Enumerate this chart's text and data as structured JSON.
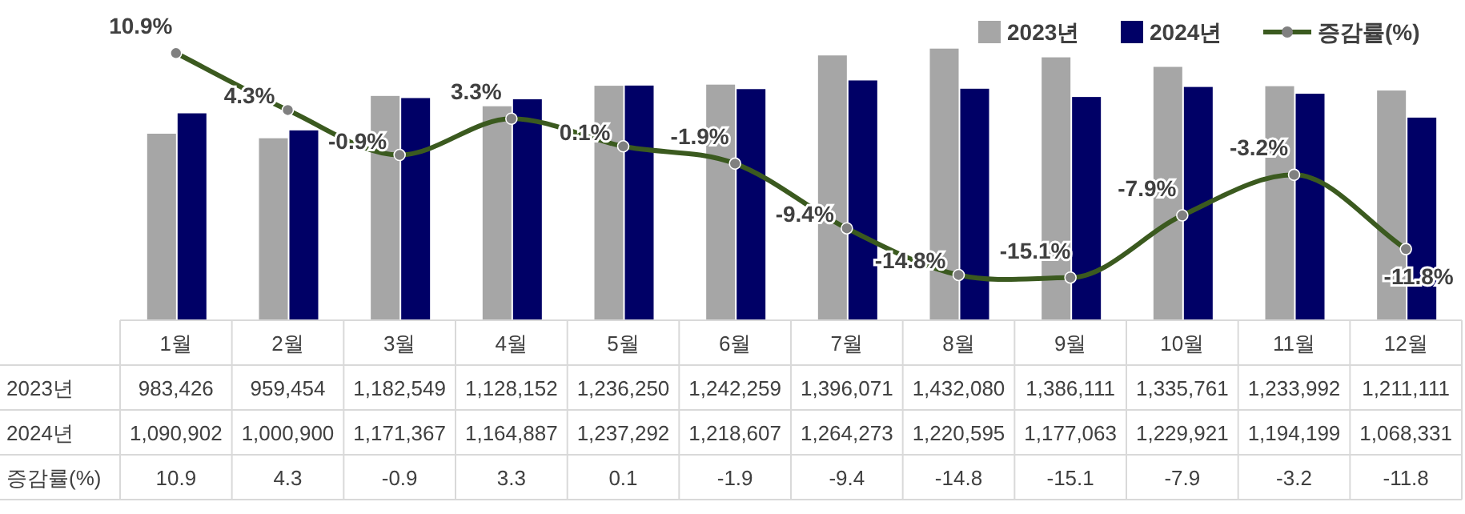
{
  "chart_data": {
    "type": "bar",
    "categories": [
      "1월",
      "2월",
      "3월",
      "4월",
      "5월",
      "6월",
      "7월",
      "8월",
      "9월",
      "10월",
      "11월",
      "12월"
    ],
    "series": [
      {
        "name": "2023년",
        "color": "#a6a6a6",
        "values": [
          983426,
          959454,
          1182549,
          1128152,
          1236250,
          1242259,
          1396071,
          1432080,
          1386111,
          1335761,
          1233992,
          1211111
        ],
        "value_labels": [
          "983,426",
          "959,454",
          "1,182,549",
          "1,128,152",
          "1,236,250",
          "1,242,259",
          "1,396,071",
          "1,432,080",
          "1,386,111",
          "1,335,761",
          "1,233,992",
          "1,211,111"
        ]
      },
      {
        "name": "2024년",
        "color": "#000066",
        "values": [
          1090902,
          1000900,
          1171367,
          1164887,
          1237292,
          1218607,
          1264273,
          1220595,
          1177063,
          1229921,
          1194199,
          1068331
        ],
        "value_labels": [
          "1,090,902",
          "1,000,900",
          "1,171,367",
          "1,164,887",
          "1,237,292",
          "1,218,607",
          "1,264,273",
          "1,220,595",
          "1,177,063",
          "1,229,921",
          "1,194,199",
          "1,068,331"
        ]
      },
      {
        "name": "증감률(%)",
        "type": "line",
        "axis": "y2",
        "color": "#3b5a1f",
        "marker": "circle",
        "values": [
          10.9,
          4.3,
          -0.9,
          3.3,
          0.1,
          -1.9,
          -9.4,
          -14.8,
          -15.1,
          -7.9,
          -3.2,
          -11.8
        ],
        "value_labels": [
          "10.9",
          "4.3",
          "-0.9",
          "3.3",
          "0.1",
          "-1.9",
          "-9.4",
          "-14.8",
          "-15.1",
          "-7.9",
          "-3.2",
          "-11.8"
        ]
      }
    ],
    "annotations": [
      "10.9%",
      "4.3%",
      "-0.9%",
      "3.3%",
      "0.1%",
      "-1.9%",
      "-9.4%",
      "-14.8%",
      "-15.1%",
      "-7.9%",
      "-3.2%",
      "-11.8%"
    ],
    "legend": "top right"
  }
}
